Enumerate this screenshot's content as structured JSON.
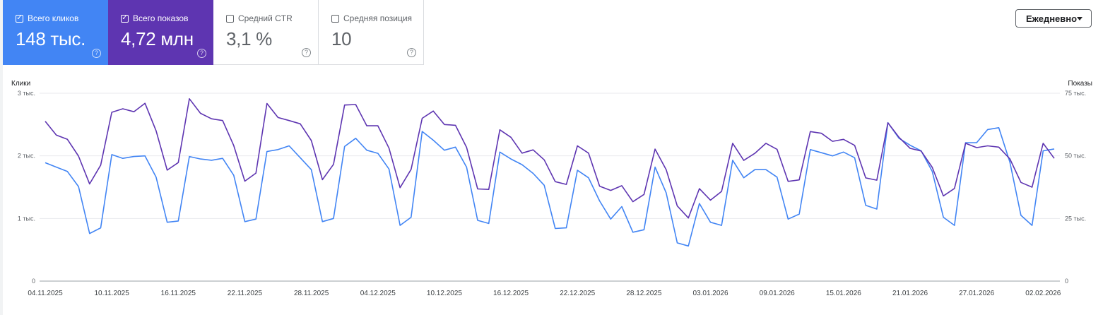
{
  "metrics": [
    {
      "label": "Всего кликов",
      "value": "148 тыс.",
      "checked": true,
      "color": "#4285f4"
    },
    {
      "label": "Всего показов",
      "value": "4,72 млн",
      "checked": true,
      "color": "#5e35b1"
    },
    {
      "label": "Средний CTR",
      "value": "3,1 %",
      "checked": false,
      "color": "#ffffff"
    },
    {
      "label": "Средняя позиция",
      "value": "10",
      "checked": false,
      "color": "#ffffff"
    }
  ],
  "period_dropdown": {
    "label": "Ежедневно"
  },
  "chart_data": {
    "type": "line",
    "left_axis": {
      "label": "Клики",
      "ticks": [
        "0",
        "1 тыс.",
        "2 тыс.",
        "3 тыс."
      ],
      "max": 3000
    },
    "right_axis": {
      "label": "Показы",
      "ticks": [
        "0",
        "25 тыс.",
        "50 тыс.",
        "75 тыс."
      ],
      "max": 75000
    },
    "x_tick_labels": [
      "04.11.2025",
      "10.11.2025",
      "16.11.2025",
      "22.11.2025",
      "28.11.2025",
      "04.12.2025",
      "10.12.2025",
      "16.12.2025",
      "22.12.2025",
      "28.12.2025",
      "03.01.2026",
      "09.01.2026",
      "15.01.2026",
      "21.01.2026",
      "27.01.2026",
      "02.02.2026"
    ],
    "x_tick_every": 6,
    "series": [
      {
        "name": "Клики",
        "axis": "left",
        "color": "#4285f4",
        "values": [
          1890,
          1820,
          1750,
          1510,
          760,
          850,
          2020,
          1960,
          1990,
          2000,
          1660,
          940,
          960,
          1990,
          1950,
          1930,
          1960,
          1690,
          950,
          990,
          2070,
          2100,
          2160,
          1970,
          1780,
          950,
          1000,
          2150,
          2280,
          2090,
          2040,
          1790,
          890,
          1020,
          2390,
          2250,
          2090,
          2140,
          1820,
          970,
          920,
          2060,
          1950,
          1860,
          1720,
          1530,
          840,
          850,
          1770,
          1650,
          1280,
          990,
          1190,
          780,
          820,
          1820,
          1410,
          610,
          560,
          1240,
          940,
          890,
          1930,
          1650,
          1780,
          1780,
          1660,
          990,
          1070,
          2100,
          2050,
          2000,
          2060,
          1970,
          1210,
          1150,
          2530,
          2280,
          2170,
          2080,
          1750,
          1020,
          890,
          2210,
          2210,
          2420,
          2450,
          1900,
          1050,
          890,
          2080,
          2110
        ]
      },
      {
        "name": "Показы",
        "axis": "right",
        "color": "#5e35b1",
        "values": [
          63800,
          58300,
          56600,
          49900,
          38800,
          46300,
          67400,
          68800,
          67600,
          71000,
          60000,
          44300,
          47300,
          72800,
          67000,
          64800,
          64100,
          54100,
          39900,
          43100,
          70900,
          65300,
          64100,
          62800,
          56100,
          40500,
          46600,
          70300,
          70500,
          62000,
          62000,
          53100,
          37300,
          44600,
          65000,
          67900,
          62500,
          62200,
          53400,
          36800,
          36600,
          60400,
          57400,
          51100,
          52400,
          48400,
          39700,
          38600,
          54000,
          51100,
          37900,
          36200,
          38100,
          31700,
          34600,
          52700,
          44500,
          30000,
          25200,
          36900,
          32300,
          35800,
          55000,
          48200,
          51000,
          55000,
          52600,
          39800,
          40400,
          59700,
          59000,
          55800,
          56600,
          54200,
          41200,
          40300,
          63200,
          57400,
          53000,
          51900,
          45400,
          34000,
          37000,
          55000,
          53300,
          54000,
          53500,
          48800,
          39400,
          37500,
          55000,
          49000
        ]
      }
    ]
  }
}
